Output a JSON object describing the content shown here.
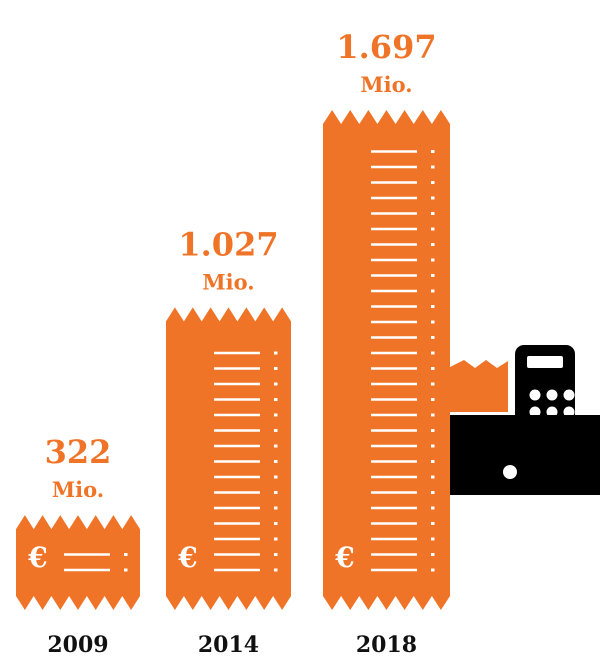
{
  "chart_data": {
    "type": "bar",
    "categories": [
      "2009",
      "2014",
      "2018"
    ],
    "values": [
      322,
      1027,
      1697
    ],
    "value_labels": [
      "322",
      "1.027",
      "1.697"
    ],
    "unit": "Mio.",
    "currency_symbol": "€",
    "title": "",
    "xlabel": "",
    "ylabel": "",
    "ylim": [
      0,
      1697
    ],
    "grid": false,
    "legend": "none"
  },
  "colors": {
    "bar": "#f07427",
    "value_text": "#f07427",
    "year_text": "#111111",
    "register": "#000000",
    "line": "#ffffff"
  },
  "icons": {
    "register": "cash-register-icon",
    "receipt": "receipt-icon"
  }
}
